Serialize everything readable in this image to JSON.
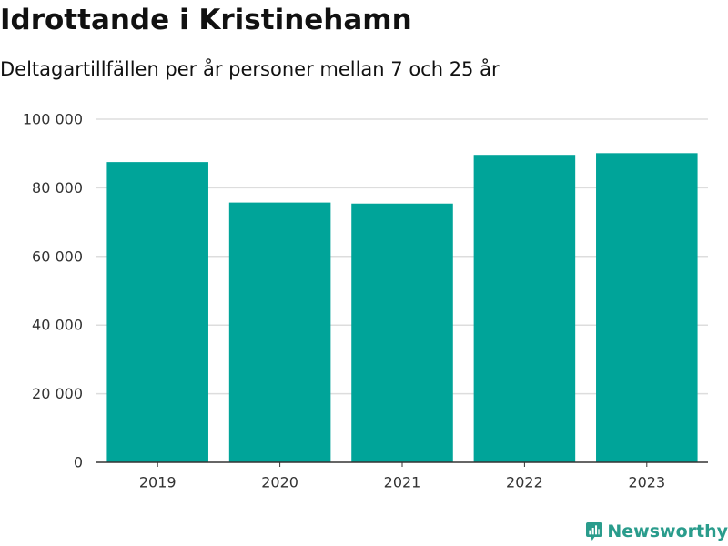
{
  "title": "Idrottande i Kristinehamn",
  "subtitle": "Deltagartillfällen per år personer mellan 7 och 25 år",
  "brand": {
    "name": "Newsworthy",
    "icon": "newsworthy-logo-icon",
    "color": "#2a9c8c"
  },
  "colors": {
    "bar": "#00a499",
    "grid": "#dddddd",
    "axis": "#333333"
  },
  "chart_data": {
    "type": "bar",
    "categories": [
      "2019",
      "2020",
      "2021",
      "2022",
      "2023"
    ],
    "values": [
      87500,
      75700,
      75400,
      89600,
      90100
    ],
    "y_ticks": [
      0,
      20000,
      40000,
      60000,
      80000,
      100000
    ],
    "y_tick_labels": [
      "0",
      "20 000",
      "40 000",
      "60 000",
      "80 000",
      "100 000"
    ],
    "ylim": [
      0,
      100000
    ],
    "grid": true,
    "legend": "none"
  }
}
